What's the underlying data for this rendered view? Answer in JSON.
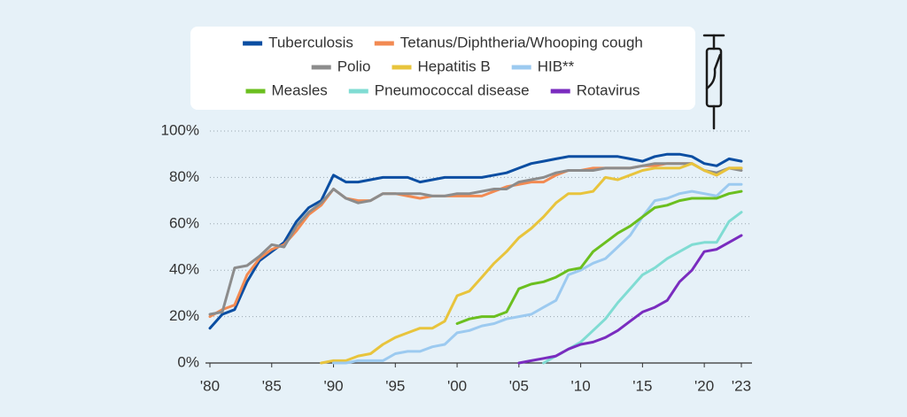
{
  "chart_data": {
    "type": "line",
    "x": [
      1980,
      1981,
      1982,
      1983,
      1984,
      1985,
      1986,
      1987,
      1988,
      1989,
      1990,
      1991,
      1992,
      1993,
      1994,
      1995,
      1996,
      1997,
      1998,
      1999,
      2000,
      2001,
      2002,
      2003,
      2004,
      2005,
      2006,
      2007,
      2008,
      2009,
      2010,
      2011,
      2012,
      2013,
      2014,
      2015,
      2016,
      2017,
      2018,
      2019,
      2020,
      2021,
      2022,
      2023
    ],
    "xlim": [
      1980,
      2023
    ],
    "xticks": [
      {
        "value": 1980,
        "label": "'80"
      },
      {
        "value": 1985,
        "label": "'85"
      },
      {
        "value": 1990,
        "label": "'90"
      },
      {
        "value": 1995,
        "label": "'95"
      },
      {
        "value": 2000,
        "label": "'00"
      },
      {
        "value": 2005,
        "label": "'05"
      },
      {
        "value": 2010,
        "label": "'10"
      },
      {
        "value": 2015,
        "label": "'15"
      },
      {
        "value": 2020,
        "label": "'20"
      },
      {
        "value": 2023,
        "label": "'23"
      }
    ],
    "ylim": [
      0,
      100
    ],
    "yticks": [
      {
        "value": 0,
        "label": "0%"
      },
      {
        "value": 20,
        "label": "20%"
      },
      {
        "value": 40,
        "label": "40%"
      },
      {
        "value": 60,
        "label": "60%"
      },
      {
        "value": 80,
        "label": "80%"
      },
      {
        "value": 100,
        "label": "100%"
      }
    ],
    "grid": true,
    "legend": "top",
    "series": [
      {
        "name": "Tuberculosis",
        "color": "#0b4ea2",
        "values": [
          15,
          21,
          23,
          35,
          44,
          48,
          52,
          61,
          67,
          70,
          81,
          78,
          78,
          79,
          80,
          80,
          80,
          78,
          79,
          80,
          80,
          80,
          80,
          81,
          82,
          84,
          86,
          87,
          88,
          89,
          89,
          89,
          89,
          89,
          88,
          87,
          89,
          90,
          90,
          89,
          86,
          85,
          88,
          87
        ]
      },
      {
        "name": "Tetanus/Diphtheria/Whooping cough",
        "color": "#f28a52",
        "values": [
          20,
          23,
          25,
          38,
          45,
          49,
          51,
          57,
          64,
          68,
          75,
          71,
          70,
          70,
          73,
          73,
          72,
          71,
          72,
          72,
          72,
          72,
          72,
          74,
          76,
          77,
          78,
          78,
          81,
          83,
          83,
          84,
          84,
          84,
          84,
          85,
          85,
          86,
          86,
          86,
          83,
          81,
          84,
          84
        ]
      },
      {
        "name": "Polio",
        "color": "#8c8c8c",
        "values": [
          21,
          22,
          41,
          42,
          46,
          51,
          50,
          59,
          65,
          69,
          75,
          71,
          69,
          70,
          73,
          73,
          73,
          73,
          72,
          72,
          73,
          73,
          74,
          75,
          75,
          78,
          79,
          80,
          82,
          83,
          83,
          83,
          84,
          84,
          84,
          85,
          86,
          86,
          86,
          86,
          83,
          82,
          84,
          83
        ]
      },
      {
        "name": "Hepatitis B",
        "color": "#e8c43c",
        "values": [
          null,
          null,
          null,
          null,
          null,
          null,
          null,
          null,
          null,
          0,
          1,
          1,
          3,
          4,
          8,
          11,
          13,
          15,
          15,
          18,
          29,
          31,
          37,
          43,
          48,
          54,
          58,
          63,
          69,
          73,
          73,
          74,
          80,
          79,
          81,
          83,
          84,
          84,
          84,
          86,
          83,
          81,
          84,
          84
        ]
      },
      {
        "name": "HIB**",
        "color": "#9ccaf0",
        "values": [
          null,
          null,
          null,
          null,
          null,
          null,
          null,
          null,
          null,
          null,
          0,
          0,
          1,
          1,
          1,
          4,
          5,
          5,
          7,
          8,
          13,
          14,
          16,
          17,
          19,
          20,
          21,
          24,
          27,
          38,
          40,
          43,
          45,
          50,
          55,
          63,
          70,
          71,
          73,
          74,
          73,
          72,
          77,
          77
        ]
      },
      {
        "name": "Measles",
        "color": "#6bbf1f",
        "values": [
          null,
          null,
          null,
          null,
          null,
          null,
          null,
          null,
          null,
          null,
          null,
          null,
          null,
          null,
          null,
          null,
          null,
          null,
          null,
          null,
          17,
          19,
          20,
          20,
          22,
          32,
          34,
          35,
          37,
          40,
          41,
          48,
          52,
          56,
          59,
          63,
          67,
          68,
          70,
          71,
          71,
          71,
          73,
          74
        ]
      },
      {
        "name": "Pneumococcal disease",
        "color": "#80dcd3",
        "values": [
          null,
          null,
          null,
          null,
          null,
          null,
          null,
          null,
          null,
          null,
          null,
          null,
          null,
          null,
          null,
          null,
          null,
          null,
          null,
          null,
          null,
          null,
          null,
          null,
          null,
          null,
          null,
          0,
          3,
          6,
          9,
          14,
          19,
          26,
          32,
          38,
          41,
          45,
          48,
          51,
          52,
          52,
          61,
          65
        ]
      },
      {
        "name": "Rotavirus",
        "color": "#7a2cbf",
        "values": [
          null,
          null,
          null,
          null,
          null,
          null,
          null,
          null,
          null,
          null,
          null,
          null,
          null,
          null,
          null,
          null,
          null,
          null,
          null,
          null,
          null,
          null,
          null,
          null,
          null,
          0,
          1,
          2,
          3,
          6,
          8,
          9,
          11,
          14,
          18,
          22,
          24,
          27,
          35,
          40,
          48,
          49,
          52,
          55
        ]
      }
    ]
  }
}
